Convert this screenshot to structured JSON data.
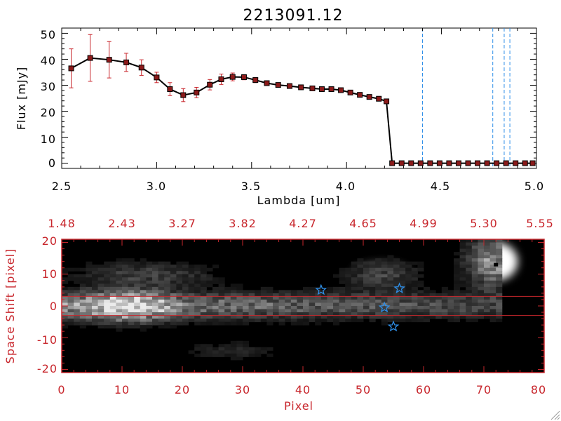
{
  "colors": {
    "red": "#c8262c",
    "blue": "#2f8fe8",
    "black": "#000000",
    "marker": "#8b1a1a"
  },
  "chart_data": [
    {
      "type": "line",
      "title": "2213091.12",
      "xlabel": "Lambda [um]",
      "ylabel": "Flux [mJy]",
      "xlim": [
        2.5,
        5.0
      ],
      "ylim": [
        -2,
        52
      ],
      "xticks": [
        "2.5",
        "3.0",
        "3.5",
        "4.0",
        "4.5",
        "5.0"
      ],
      "yticks": [
        "0",
        "10",
        "20",
        "30",
        "40",
        "50"
      ],
      "series": [
        {
          "name": "flux",
          "x": [
            2.55,
            2.65,
            2.75,
            2.84,
            2.92,
            3.0,
            3.07,
            3.14,
            3.21,
            3.28,
            3.34,
            3.4,
            3.46,
            3.52,
            3.58,
            3.64,
            3.7,
            3.76,
            3.82,
            3.87,
            3.92,
            3.97,
            4.02,
            4.07,
            4.12,
            4.17,
            4.21,
            4.24,
            4.29,
            4.34,
            4.39,
            4.44,
            4.49,
            4.54,
            4.59,
            4.64,
            4.69,
            4.74,
            4.79,
            4.84,
            4.89,
            4.94,
            4.98
          ],
          "y": [
            36.5,
            40.5,
            39.8,
            38.8,
            36.8,
            33,
            28.5,
            26.2,
            27.2,
            30.2,
            32.3,
            33.2,
            33.1,
            32,
            30.8,
            30.1,
            29.7,
            29.2,
            28.8,
            28.5,
            28.5,
            28.1,
            27.2,
            26.3,
            25.5,
            24.8,
            23.8,
            0,
            0,
            0,
            0,
            0,
            0,
            0,
            0,
            0,
            0,
            0,
            0,
            0,
            0,
            0,
            0
          ],
          "yerr": [
            7.5,
            9,
            7,
            3.5,
            3,
            2,
            2.5,
            2.5,
            2,
            2,
            2,
            1.5,
            1,
            1,
            0.5,
            0.5,
            0.5,
            0.5,
            0.5,
            0.5,
            0.5,
            0.5,
            0.5,
            0.5,
            0.5,
            0.5,
            0.5,
            0,
            0,
            0,
            0,
            0,
            0,
            0,
            0,
            0,
            0,
            0,
            0,
            0,
            0,
            0,
            0
          ]
        }
      ],
      "dashed_vertical_lines_x": [
        4.4,
        4.77,
        4.83,
        4.86
      ]
    },
    {
      "type": "heatmap",
      "xlabel": "Pixel",
      "ylabel": "Space Shift [pixel]",
      "xlim": [
        0,
        80
      ],
      "ylim": [
        -21,
        21
      ],
      "xticks": [
        "0",
        "10",
        "20",
        "30",
        "40",
        "50",
        "60",
        "70",
        "80"
      ],
      "yticks": [
        "-20",
        "-10",
        "0",
        "10",
        "20"
      ],
      "top_axis_ticks": [
        "1.48",
        "2.43",
        "3.27",
        "3.82",
        "4.27",
        "4.65",
        "4.99",
        "5.30",
        "5.55"
      ],
      "horizontal_lines_y": [
        3,
        -3
      ],
      "star_markers": [
        {
          "x": 43,
          "y": 5
        },
        {
          "x": 56,
          "y": 5.5
        },
        {
          "x": 53.5,
          "y": -0.5
        },
        {
          "x": 55,
          "y": -6.5
        }
      ],
      "bright_sources": [
        {
          "x": 11,
          "y": 0,
          "intensity": 1.0,
          "sx": 4,
          "sy": 3
        },
        {
          "x": 72,
          "y": 14,
          "intensity": 1.0,
          "sx": 3,
          "sy": 5
        },
        {
          "x": 53,
          "y": 10,
          "intensity": 0.45,
          "sx": 4,
          "sy": 3
        }
      ]
    }
  ]
}
